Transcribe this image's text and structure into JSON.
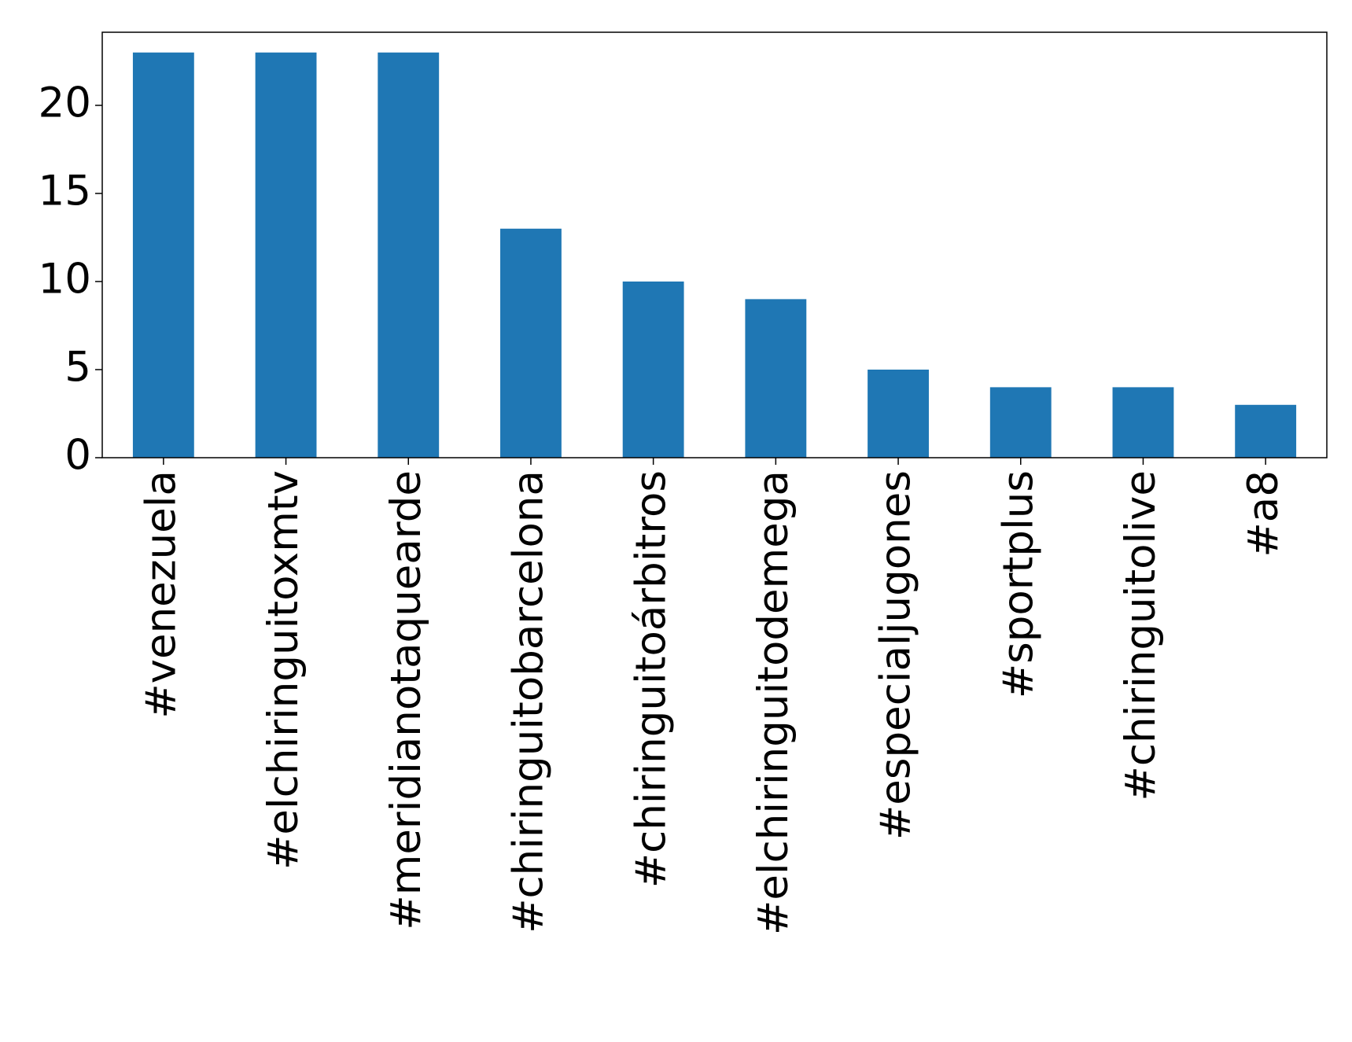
{
  "chart_data": {
    "type": "bar",
    "categories": [
      "#venezuela",
      "#elchiringuitoxmtv",
      "#meridianotaquearde",
      "#chiringuitobarcelona",
      "#chiringuitoárbitros",
      "#elchiringuitodemega",
      "#especialjugones",
      "#sportplus",
      "#chiringuitolive",
      "#a8"
    ],
    "values": [
      23,
      23,
      23,
      13,
      10,
      9,
      5,
      4,
      4,
      3
    ],
    "color": "#1f77b4",
    "ylim": [
      0,
      24.15
    ],
    "yticks": [
      0,
      5,
      10,
      15,
      20
    ],
    "grid": false
  }
}
